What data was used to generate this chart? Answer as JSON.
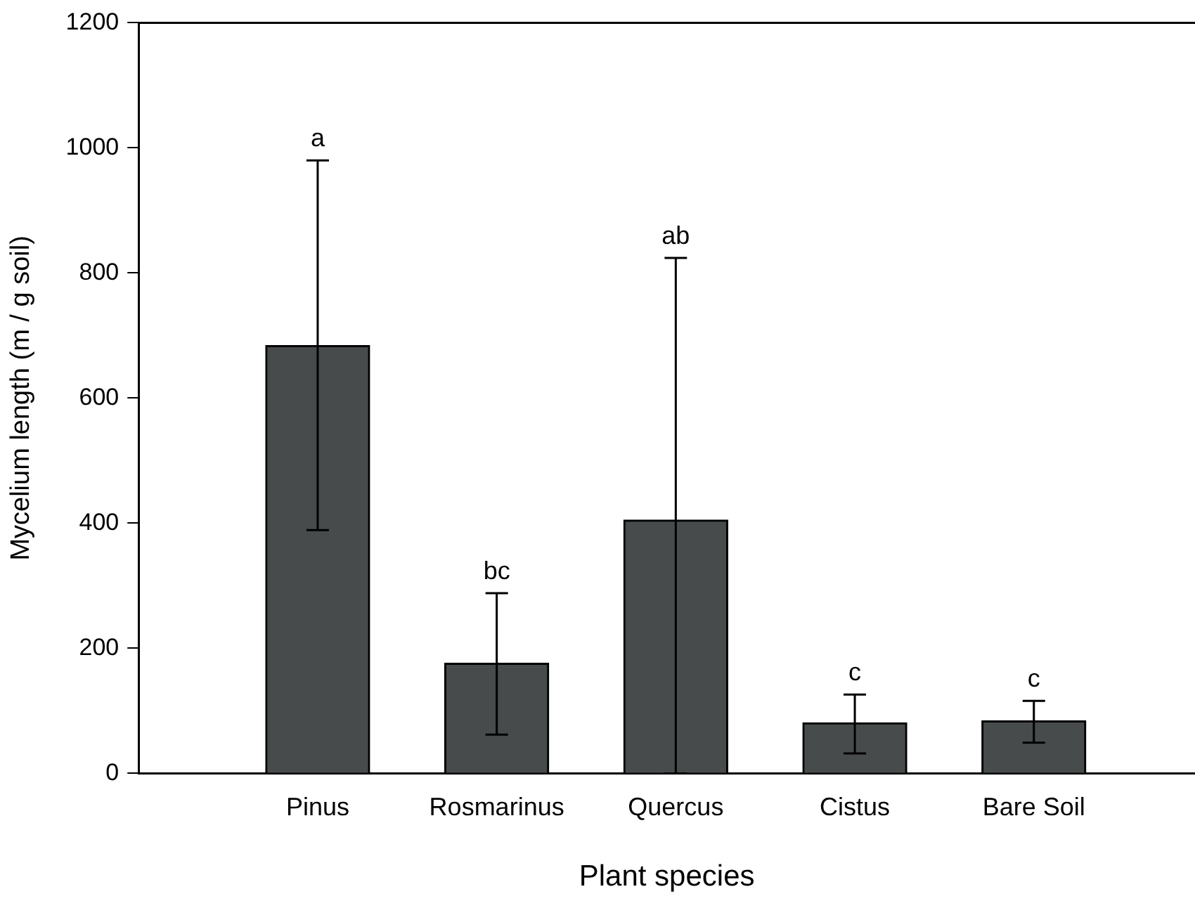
{
  "chart_data": {
    "type": "bar",
    "xlabel": "Plant species",
    "ylabel": "Mycelium length (m / g soil)",
    "categories": [
      "Pinus",
      "Rosmarinus",
      "Quercus",
      "Cistus",
      "Bare Soil"
    ],
    "values": [
      684,
      176,
      405,
      81,
      84
    ],
    "errors": [
      [
        389,
        980
      ],
      [
        62,
        288
      ],
      [
        0,
        824
      ],
      [
        32,
        126
      ],
      [
        49,
        116
      ]
    ],
    "color": "#474b4c",
    "ylim": [
      0,
      1200
    ],
    "yticks": [
      0,
      200,
      400,
      600,
      800,
      1000,
      1200
    ],
    "grid": false,
    "legend": false,
    "annotations": [
      {
        "text": "a",
        "x": "Pinus",
        "y": 980
      },
      {
        "text": "bc",
        "x": "Rosmarinus",
        "y": 288
      },
      {
        "text": "ab",
        "x": "Quercus",
        "y": 824
      },
      {
        "text": "c",
        "x": "Cistus",
        "y": 126
      },
      {
        "text": "c",
        "x": "Bare Soil",
        "y": 116
      }
    ]
  }
}
